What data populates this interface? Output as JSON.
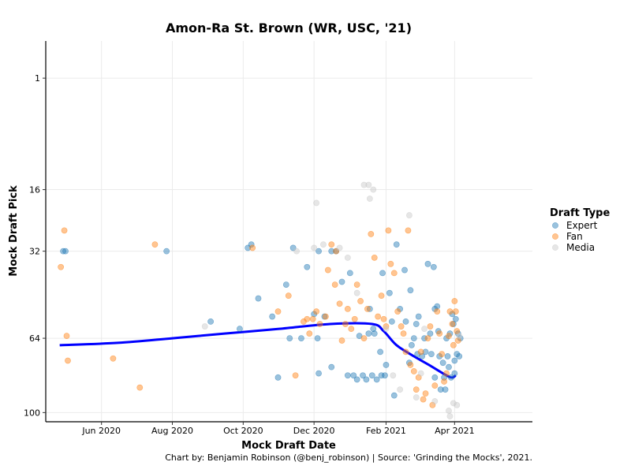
{
  "chart_data": {
    "type": "scatter",
    "title": "Amon-Ra St. Brown (WR, USC, '21)",
    "xlabel": "Mock Draft Date",
    "ylabel": "Mock Draft Pick",
    "caption": "Chart by: Benjamin Robinson (@benj_robinson) | Source: 'Grinding the Mocks', 2021.",
    "x_type": "date",
    "xlim": [
      "2020-04-14",
      "2021-06-07"
    ],
    "ylim": [
      105,
      -4
    ],
    "y_reversed": true,
    "y_scale": "sqrt",
    "grid": true,
    "legend_position": "right",
    "legend_title": "Draft Type",
    "x_ticks": [
      {
        "date": "2020-06-01",
        "label": "Jun 2020"
      },
      {
        "date": "2020-08-01",
        "label": "Aug 2020"
      },
      {
        "date": "2020-10-01",
        "label": "Oct 2020"
      },
      {
        "date": "2020-12-01",
        "label": "Dec 2020"
      },
      {
        "date": "2021-02-01",
        "label": "Feb 2021"
      },
      {
        "date": "2021-04-01",
        "label": "Apr 2021"
      }
    ],
    "y_ticks": [
      {
        "value": 1,
        "label": "1"
      },
      {
        "value": 16,
        "label": "16"
      },
      {
        "value": 32,
        "label": "32"
      },
      {
        "value": 64,
        "label": "64"
      },
      {
        "value": 100,
        "label": "100"
      }
    ],
    "series": [
      {
        "name": "Expert",
        "color": "#1f77b4",
        "points": [
          [
            "2020-04-29",
            32
          ],
          [
            "2020-04-31",
            32
          ],
          [
            "2020-07-27",
            32
          ],
          [
            "2020-09-03",
            57
          ],
          [
            "2020-09-28",
            60
          ],
          [
            "2020-10-05",
            31
          ],
          [
            "2020-10-08",
            30
          ],
          [
            "2020-10-14",
            48
          ],
          [
            "2020-10-26",
            55
          ],
          [
            "2020-10-31",
            82
          ],
          [
            "2020-11-07",
            43
          ],
          [
            "2020-11-10",
            64
          ],
          [
            "2020-11-13",
            31
          ],
          [
            "2020-11-20",
            64
          ],
          [
            "2020-11-25",
            37
          ],
          [
            "2020-12-01",
            54
          ],
          [
            "2020-12-04",
            64
          ],
          [
            "2020-12-05",
            80
          ],
          [
            "2020-12-05",
            32
          ],
          [
            "2020-12-10",
            55
          ],
          [
            "2020-12-16",
            32
          ],
          [
            "2020-12-16",
            77
          ],
          [
            "2020-12-20",
            32
          ],
          [
            "2020-12-25",
            42
          ],
          [
            "2020-12-30",
            81
          ],
          [
            "2021-01-01",
            39
          ],
          [
            "2021-01-04",
            81
          ],
          [
            "2021-01-07",
            83
          ],
          [
            "2021-01-09",
            63
          ],
          [
            "2021-01-12",
            81
          ],
          [
            "2021-01-15",
            83
          ],
          [
            "2021-01-17",
            62
          ],
          [
            "2021-01-18",
            52
          ],
          [
            "2021-01-20",
            81
          ],
          [
            "2021-01-21",
            60
          ],
          [
            "2021-01-22",
            62
          ],
          [
            "2021-01-24",
            83
          ],
          [
            "2021-01-27",
            70
          ],
          [
            "2021-01-28",
            81
          ],
          [
            "2021-01-29",
            39
          ],
          [
            "2021-01-31",
            81
          ],
          [
            "2021-02-01",
            76
          ],
          [
            "2021-02-04",
            46
          ],
          [
            "2021-02-06",
            57
          ],
          [
            "2021-02-08",
            91
          ],
          [
            "2021-02-10",
            30
          ],
          [
            "2021-02-13",
            52
          ],
          [
            "2021-02-17",
            38
          ],
          [
            "2021-02-18",
            57
          ],
          [
            "2021-02-21",
            75
          ],
          [
            "2021-02-22",
            45
          ],
          [
            "2021-02-23",
            67
          ],
          [
            "2021-02-25",
            64
          ],
          [
            "2021-02-27",
            58
          ],
          [
            "2021-02-28",
            71
          ],
          [
            "2021-03-01",
            55
          ],
          [
            "2021-03-04",
            72
          ],
          [
            "2021-03-06",
            64
          ],
          [
            "2021-03-07",
            70
          ],
          [
            "2021-03-09",
            36
          ],
          [
            "2021-03-11",
            62
          ],
          [
            "2021-03-12",
            71
          ],
          [
            "2021-03-14",
            37
          ],
          [
            "2021-03-15",
            52
          ],
          [
            "2021-03-15",
            82
          ],
          [
            "2021-03-17",
            51
          ],
          [
            "2021-03-18",
            61
          ],
          [
            "2021-03-19",
            72
          ],
          [
            "2021-03-20",
            88
          ],
          [
            "2021-03-22",
            75
          ],
          [
            "2021-03-23",
            82
          ],
          [
            "2021-03-24",
            88
          ],
          [
            "2021-03-25",
            64
          ],
          [
            "2021-03-26",
            72
          ],
          [
            "2021-03-27",
            77
          ],
          [
            "2021-03-28",
            62
          ],
          [
            "2021-03-29",
            82
          ],
          [
            "2021-03-30",
            54
          ],
          [
            "2021-03-31",
            58
          ],
          [
            "2021-04-01",
            74
          ],
          [
            "2021-04-01",
            80
          ],
          [
            "2021-04-02",
            56
          ],
          [
            "2021-04-03",
            71
          ],
          [
            "2021-04-04",
            62
          ],
          [
            "2021-04-05",
            72
          ],
          [
            "2021-04-06",
            64
          ]
        ]
      },
      {
        "name": "Fan",
        "color": "#ff7f0e",
        "points": [
          [
            "2020-04-27",
            37
          ],
          [
            "2020-04-30",
            26
          ],
          [
            "2020-05-02",
            63
          ],
          [
            "2020-05-03",
            74
          ],
          [
            "2020-06-11",
            73
          ],
          [
            "2020-07-04",
            87
          ],
          [
            "2020-07-17",
            30
          ],
          [
            "2020-10-09",
            31
          ],
          [
            "2020-10-31",
            53
          ],
          [
            "2020-11-09",
            47
          ],
          [
            "2020-11-15",
            81
          ],
          [
            "2020-11-22",
            57
          ],
          [
            "2020-11-25",
            56
          ],
          [
            "2020-11-27",
            62
          ],
          [
            "2020-11-30",
            56
          ],
          [
            "2020-12-03",
            53
          ],
          [
            "2020-12-06",
            58
          ],
          [
            "2020-12-11",
            55
          ],
          [
            "2020-12-13",
            38
          ],
          [
            "2020-12-16",
            30
          ],
          [
            "2020-12-19",
            43
          ],
          [
            "2020-12-20",
            32
          ],
          [
            "2020-12-23",
            50
          ],
          [
            "2020-12-25",
            65
          ],
          [
            "2020-12-28",
            58
          ],
          [
            "2020-12-30",
            52
          ],
          [
            "2021-01-02",
            60
          ],
          [
            "2021-01-05",
            56
          ],
          [
            "2021-01-07",
            43
          ],
          [
            "2021-01-10",
            49
          ],
          [
            "2021-01-13",
            64
          ],
          [
            "2021-01-16",
            52
          ],
          [
            "2021-01-19",
            27
          ],
          [
            "2021-01-22",
            34
          ],
          [
            "2021-01-25",
            55
          ],
          [
            "2021-01-28",
            47
          ],
          [
            "2021-01-30",
            56
          ],
          [
            "2021-02-01",
            59
          ],
          [
            "2021-02-03",
            26
          ],
          [
            "2021-02-05",
            36
          ],
          [
            "2021-02-08",
            39
          ],
          [
            "2021-02-11",
            53
          ],
          [
            "2021-02-14",
            59
          ],
          [
            "2021-02-16",
            62
          ],
          [
            "2021-02-18",
            70
          ],
          [
            "2021-02-20",
            26
          ],
          [
            "2021-02-22",
            76
          ],
          [
            "2021-02-25",
            79
          ],
          [
            "2021-02-27",
            88
          ],
          [
            "2021-03-01",
            82
          ],
          [
            "2021-03-03",
            70
          ],
          [
            "2021-03-05",
            93
          ],
          [
            "2021-03-07",
            90
          ],
          [
            "2021-03-09",
            64
          ],
          [
            "2021-03-11",
            59
          ],
          [
            "2021-03-13",
            96
          ],
          [
            "2021-03-15",
            86
          ],
          [
            "2021-03-17",
            53
          ],
          [
            "2021-03-19",
            62
          ],
          [
            "2021-03-21",
            71
          ],
          [
            "2021-03-23",
            84
          ],
          [
            "2021-03-25",
            80
          ],
          [
            "2021-03-27",
            63
          ],
          [
            "2021-03-28",
            53
          ],
          [
            "2021-03-30",
            58
          ],
          [
            "2021-03-31",
            67
          ],
          [
            "2021-04-01",
            49
          ],
          [
            "2021-04-02",
            53
          ],
          [
            "2021-04-03",
            61
          ],
          [
            "2021-04-04",
            65
          ]
        ]
      },
      {
        "name": "Media",
        "color": "#c7c7c7",
        "points": [
          [
            "2020-08-29",
            59
          ],
          [
            "2020-11-16",
            32
          ],
          [
            "2020-12-01",
            31
          ],
          [
            "2020-12-03",
            19
          ],
          [
            "2020-12-09",
            30
          ],
          [
            "2020-12-23",
            31
          ],
          [
            "2020-12-30",
            34
          ],
          [
            "2021-01-07",
            46
          ],
          [
            "2021-01-13",
            15
          ],
          [
            "2021-01-17",
            15
          ],
          [
            "2021-01-18",
            18
          ],
          [
            "2021-01-21",
            16
          ],
          [
            "2021-02-01",
            60
          ],
          [
            "2021-02-07",
            81
          ],
          [
            "2021-02-13",
            88
          ],
          [
            "2021-02-21",
            22
          ],
          [
            "2021-02-27",
            92
          ],
          [
            "2021-03-03",
            80
          ],
          [
            "2021-03-06",
            60
          ],
          [
            "2021-03-15",
            94
          ],
          [
            "2021-03-27",
            99
          ],
          [
            "2021-03-28",
            102
          ],
          [
            "2021-03-31",
            95
          ],
          [
            "2021-04-03",
            96
          ],
          [
            "2021-04-05",
            63
          ]
        ]
      }
    ],
    "trend": {
      "name": "smooth trend",
      "color": "#0000ff",
      "points": [
        [
          "2020-04-26",
          67
        ],
        [
          "2020-06-15",
          66
        ],
        [
          "2020-08-01",
          64
        ],
        [
          "2020-09-15",
          62
        ],
        [
          "2020-11-01",
          60
        ],
        [
          "2020-12-15",
          58
        ],
        [
          "2021-01-20",
          58
        ],
        [
          "2021-01-30",
          61
        ],
        [
          "2021-02-10",
          67
        ],
        [
          "2021-02-25",
          72
        ],
        [
          "2021-03-10",
          76
        ],
        [
          "2021-03-25",
          81
        ],
        [
          "2021-03-30",
          82
        ],
        [
          "2021-04-02",
          81
        ]
      ]
    }
  }
}
